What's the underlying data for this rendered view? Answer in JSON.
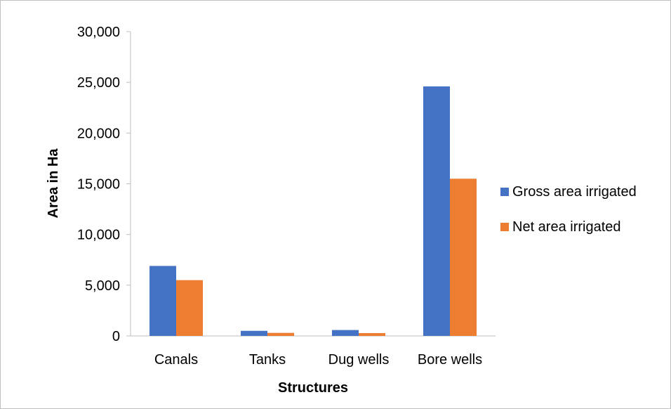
{
  "chart_data": {
    "type": "bar",
    "categories": [
      "Canals",
      "Tanks",
      "Dug wells",
      "Bore wells"
    ],
    "series": [
      {
        "name": "Gross area irrigated",
        "color": "#4472C4",
        "values": [
          6900,
          500,
          580,
          24600
        ]
      },
      {
        "name": "Net area irrigated",
        "color": "#ED7D31",
        "values": [
          5500,
          300,
          280,
          15500
        ]
      }
    ],
    "xlabel": "Structures",
    "ylabel": "Area in Ha",
    "ylim": [
      0,
      30000
    ],
    "yticks": [
      0,
      5000,
      10000,
      15000,
      20000,
      25000,
      30000
    ],
    "ytick_labels": [
      "0",
      "5,000",
      "10,000",
      "15,000",
      "20,000",
      "25,000",
      "30,000"
    ],
    "grid": false,
    "legend_position": "right"
  }
}
